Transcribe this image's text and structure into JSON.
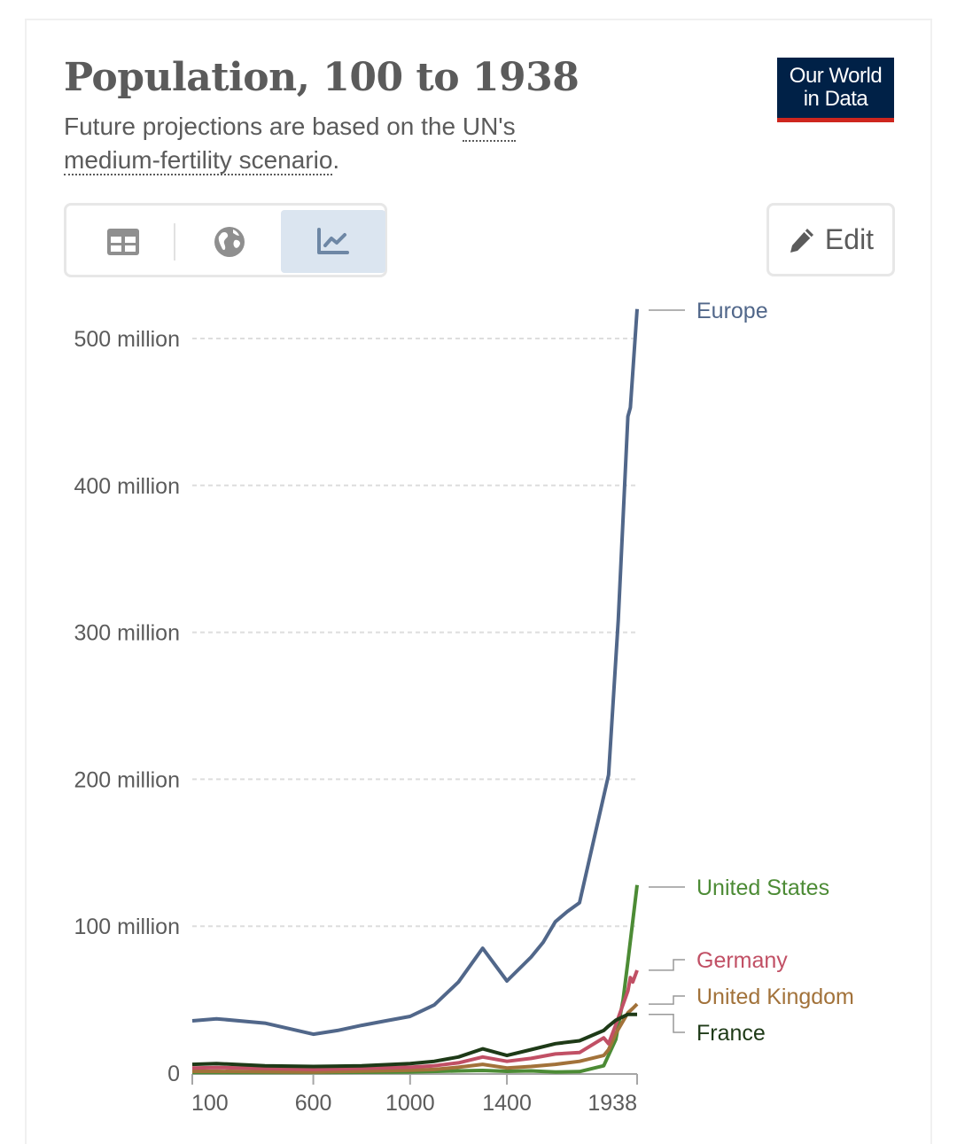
{
  "header": {
    "title": "Population, 100 to 1938",
    "subtitle_pre": "Future projections are based on the ",
    "subtitle_link": "UN's medium-fertility scenario",
    "subtitle_post": ".",
    "logo_line1": "Our World",
    "logo_line2": "in Data",
    "logo_text": "Our World in Data"
  },
  "toolbar": {
    "tabs": [
      {
        "icon": "table-icon",
        "active": false
      },
      {
        "icon": "globe-icon",
        "active": false
      },
      {
        "icon": "line-chart-icon",
        "active": true
      }
    ],
    "edit_label": "Edit",
    "edit_icon": "pencil-icon"
  },
  "colors": {
    "Europe": "#51678a",
    "United States": "#4c8b35",
    "Germany": "#c15065",
    "United Kingdom": "#a2723a",
    "France": "#1e3a17",
    "grid": "#dddddd",
    "axis": "#a6a6a6",
    "text": "#5b5b5b"
  },
  "chart_data": {
    "type": "line",
    "title": "Population, 100 to 1938",
    "xlabel": "",
    "ylabel": "",
    "xlim": [
      100,
      1938
    ],
    "ylim": [
      0,
      520
    ],
    "grid": true,
    "legend": "right (inline labels at line ends)",
    "x_ticks": [
      100,
      600,
      1000,
      1400,
      1938
    ],
    "x_tick_labels": [
      "100",
      "600",
      "1000",
      "1400",
      "1938"
    ],
    "y_ticks": [
      0,
      100,
      200,
      300,
      400,
      500
    ],
    "y_tick_labels": [
      "0",
      "100 million",
      "200 million",
      "300 million",
      "400 million",
      "500 million"
    ],
    "units": "million",
    "series": [
      {
        "name": "Europe",
        "x": [
          100,
          200,
          400,
          600,
          700,
          800,
          900,
          1000,
          1100,
          1200,
          1300,
          1400,
          1500,
          1550,
          1600,
          1650,
          1700,
          1820,
          1860,
          1900,
          1910,
          1938
        ],
        "values": [
          35.6,
          37,
          34,
          26.5,
          29,
          32.5,
          35.6,
          38.6,
          46.4,
          62,
          85,
          62.7,
          79,
          89,
          103,
          110,
          116,
          203,
          308,
          447,
          453,
          520
        ]
      },
      {
        "name": "United States",
        "x": [
          100,
          600,
          1000,
          1200,
          1300,
          1400,
          1500,
          1600,
          1700,
          1800,
          1850,
          1880,
          1900,
          1938
        ],
        "values": [
          0.5,
          0.5,
          0.8,
          1.5,
          1.8,
          1.2,
          1.5,
          0.8,
          1.0,
          5,
          23,
          50,
          76,
          128
        ]
      },
      {
        "name": "Germany",
        "x": [
          100,
          200,
          600,
          1000,
          1100,
          1200,
          1300,
          1400,
          1500,
          1600,
          1700,
          1800,
          1820,
          1850,
          1900,
          1910,
          1920,
          1938
        ],
        "values": [
          3.5,
          3.8,
          2.5,
          4,
          5,
          7,
          11,
          8,
          10,
          13,
          14,
          24,
          20,
          33,
          56,
          65,
          62,
          70
        ]
      },
      {
        "name": "United Kingdom",
        "x": [
          100,
          200,
          600,
          1000,
          1100,
          1200,
          1300,
          1400,
          1500,
          1600,
          1700,
          1800,
          1820,
          1850,
          1900,
          1920,
          1938
        ],
        "values": [
          1.2,
          1.2,
          0.8,
          2,
          2.5,
          4,
          6,
          3.5,
          4.5,
          6,
          8,
          12,
          16,
          27,
          41,
          44,
          47
        ]
      },
      {
        "name": "France",
        "x": [
          100,
          200,
          400,
          600,
          800,
          1000,
          1100,
          1200,
          1300,
          1400,
          1500,
          1600,
          1700,
          1800,
          1820,
          1850,
          1900,
          1920,
          1938
        ],
        "values": [
          6,
          6.5,
          5,
          4.5,
          5,
          6.5,
          8,
          11,
          16.5,
          12,
          16,
          20,
          22,
          29,
          32,
          36,
          40,
          40,
          40
        ]
      }
    ]
  }
}
